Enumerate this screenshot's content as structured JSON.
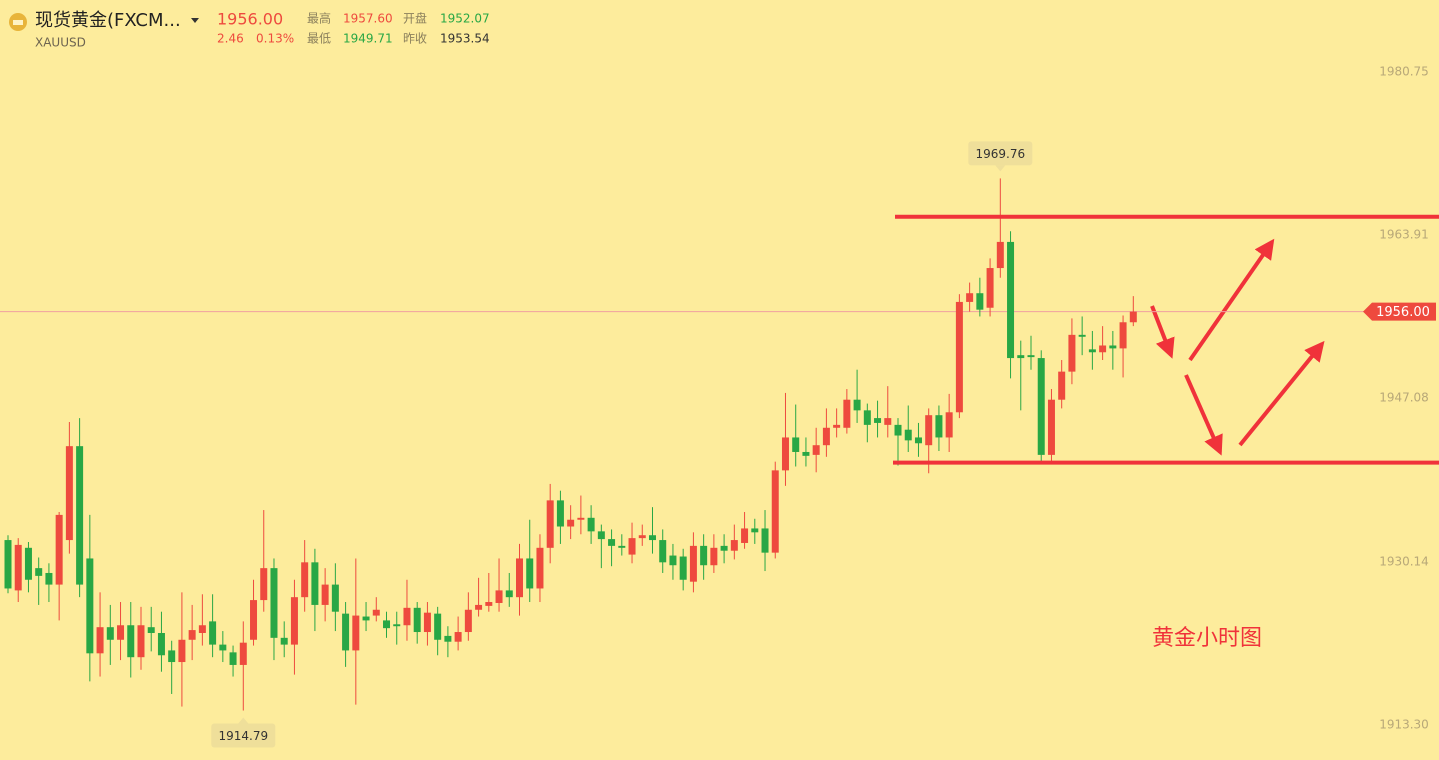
{
  "header": {
    "title": "现货黄金(FXCM...",
    "symbol": "XAUUSD",
    "price": "1956.00",
    "change": "2.46",
    "change_pct": "0.13%",
    "high_label": "最高",
    "high": "1957.60",
    "open_label": "开盘",
    "open": "1952.07",
    "low_label": "最低",
    "low": "1949.71",
    "prev_close_label": "昨收",
    "prev_close": "1953.54"
  },
  "chart_data": {
    "type": "candlestick",
    "annotation": "黄金小时图",
    "up_color": "#ee4a3e",
    "down_color": "#28a745",
    "ylim": [
      1909.68,
      1988.19
    ],
    "yticks": [
      {
        "value": 1913.3,
        "label": "1913.30"
      },
      1930.14,
      1947.08,
      1963.91,
      1980.75
    ],
    "last_price": {
      "value": 1956,
      "label": "1956.00"
    },
    "resistance": 1965.8,
    "support": 1940.4,
    "max_index": 97,
    "min_index": 23,
    "open": [
      1932.4,
      1927.2,
      1931.6,
      1929.5,
      1929.0,
      1927.8,
      1932.4,
      1942.1,
      1930.5,
      1920.7,
      1923.4,
      1922.1,
      1923.6,
      1920.3,
      1923.4,
      1922.8,
      1921.0,
      1919.8,
      1922.1,
      1922.8,
      1924.0,
      1921.6,
      1920.8,
      1919.5,
      1922.1,
      1926.2,
      1929.5,
      1922.3,
      1921.6,
      1926.5,
      1930.1,
      1925.7,
      1927.8,
      1924.8,
      1921.0,
      1924.5,
      1924.6,
      1924.1,
      1923.7,
      1923.6,
      1925.4,
      1922.9,
      1924.8,
      1922.5,
      1921.9,
      1922.9,
      1925.2,
      1925.6,
      1925.9,
      1927.2,
      1926.5,
      1930.5,
      1927.4,
      1931.6,
      1936.5,
      1933.8,
      1934.5,
      1934.7,
      1933.3,
      1932.5,
      1931.8,
      1930.9,
      1932.6,
      1932.9,
      1932.4,
      1930.8,
      1930.7,
      1928.1,
      1931.8,
      1929.8,
      1931.8,
      1931.3,
      1932.1,
      1933.6,
      1933.6,
      1931.1,
      1939.6,
      1943.0,
      1941.5,
      1941.2,
      1942.2,
      1944.0,
      1944.0,
      1946.9,
      1945.8,
      1945.0,
      1944.3,
      1944.3,
      1943.8,
      1943.0,
      1942.2,
      1945.3,
      1943.0,
      1945.6,
      1957.0,
      1957.9,
      1956.4,
      1960.5,
      1963.2,
      1951.5,
      1951.5,
      1951.2,
      1941.2,
      1946.9,
      1949.8,
      1953.6,
      1952.1,
      1951.8,
      1952.5,
      1952.2,
      1954.9
    ],
    "high": [
      1932.9,
      1932.6,
      1932.2,
      1930.6,
      1930.0,
      1935.3,
      1944.6,
      1945.0,
      1935.0,
      1927.0,
      1925.7,
      1926.0,
      1926.0,
      1925.5,
      1925.5,
      1925.0,
      1922.0,
      1927.0,
      1925.7,
      1926.8,
      1926.8,
      1923.0,
      1921.5,
      1924.0,
      1928.3,
      1935.5,
      1930.5,
      1924.0,
      1928.3,
      1932.4,
      1931.5,
      1929.5,
      1930.0,
      1926.0,
      1930.5,
      1926.0,
      1926.5,
      1925.0,
      1925.0,
      1928.3,
      1926.0,
      1926.0,
      1925.5,
      1923.5,
      1924.5,
      1927.0,
      1928.5,
      1929.0,
      1930.5,
      1929.0,
      1932.0,
      1934.5,
      1933.0,
      1938.2,
      1937.5,
      1936.0,
      1937.0,
      1936.0,
      1934.0,
      1933.5,
      1933.0,
      1934.2,
      1934.0,
      1935.8,
      1933.5,
      1932.0,
      1931.5,
      1933.2,
      1933.0,
      1933.0,
      1933.0,
      1934.0,
      1935.3,
      1934.6,
      1935.5,
      1940.5,
      1947.6,
      1946.4,
      1943.0,
      1944.0,
      1946.0,
      1946.0,
      1948.0,
      1950.0,
      1946.5,
      1946.8,
      1948.3,
      1945.0,
      1946.3,
      1944.5,
      1946.0,
      1946.3,
      1947.5,
      1957.8,
      1959.0,
      1959.5,
      1961.5,
      1969.76,
      1964.3,
      1953.0,
      1953.5,
      1952.0,
      1948.0,
      1951.0,
      1955.3,
      1955.5,
      1954.0,
      1954.5,
      1954.0,
      1955.6,
      1957.6
    ],
    "low": [
      1926.9,
      1926.0,
      1927.0,
      1925.7,
      1926.0,
      1924.1,
      1931.0,
      1926.5,
      1917.8,
      1918.3,
      1919.5,
      1920.0,
      1918.2,
      1919.0,
      1920.9,
      1918.8,
      1916.5,
      1915.2,
      1920.0,
      1921.5,
      1920.3,
      1919.8,
      1918.3,
      1914.79,
      1921.5,
      1925.0,
      1920.0,
      1920.3,
      1918.5,
      1925.0,
      1923.0,
      1924.0,
      1923.0,
      1919.3,
      1915.4,
      1923.0,
      1924.0,
      1922.3,
      1921.6,
      1922.0,
      1921.7,
      1921.5,
      1920.5,
      1920.3,
      1921.0,
      1922.0,
      1924.5,
      1925.0,
      1925.0,
      1925.5,
      1924.6,
      1926.0,
      1926.0,
      1930.0,
      1932.0,
      1932.5,
      1933.0,
      1932.0,
      1929.5,
      1929.7,
      1930.8,
      1930.0,
      1931.8,
      1931.0,
      1929.0,
      1928.3,
      1927.2,
      1927.0,
      1928.3,
      1929.0,
      1930.0,
      1930.4,
      1931.5,
      1932.0,
      1929.2,
      1930.5,
      1938.0,
      1940.0,
      1940.0,
      1939.4,
      1941.0,
      1943.0,
      1943.4,
      1944.5,
      1942.5,
      1943.0,
      1943.0,
      1940.1,
      1941.5,
      1941.0,
      1939.3,
      1941.6,
      1941.5,
      1945.0,
      1956.0,
      1955.5,
      1955.5,
      1959.5,
      1949.1,
      1945.8,
      1950.0,
      1940.5,
      1940.5,
      1946.0,
      1948.5,
      1951.5,
      1950.0,
      1951.0,
      1950.0,
      1949.2,
      1954.5
    ],
    "close": [
      1927.4,
      1931.9,
      1928.3,
      1928.7,
      1927.8,
      1935.0,
      1942.1,
      1927.8,
      1920.7,
      1923.4,
      1922.1,
      1923.6,
      1920.3,
      1923.6,
      1922.8,
      1920.5,
      1919.8,
      1922.1,
      1923.1,
      1923.6,
      1921.6,
      1921.0,
      1919.5,
      1921.8,
      1926.2,
      1929.5,
      1922.3,
      1921.6,
      1926.5,
      1930.1,
      1925.7,
      1927.8,
      1925.0,
      1921.0,
      1924.6,
      1924.1,
      1925.2,
      1923.3,
      1923.5,
      1925.4,
      1922.9,
      1924.9,
      1922.1,
      1921.9,
      1922.9,
      1925.2,
      1925.7,
      1926.0,
      1927.2,
      1926.5,
      1930.5,
      1927.4,
      1931.6,
      1936.5,
      1933.8,
      1934.5,
      1934.7,
      1933.3,
      1932.5,
      1931.8,
      1931.6,
      1932.6,
      1932.9,
      1932.4,
      1930.1,
      1929.8,
      1928.3,
      1931.8,
      1929.8,
      1931.6,
      1931.3,
      1932.4,
      1933.6,
      1933.2,
      1931.1,
      1939.6,
      1943.0,
      1941.5,
      1941.1,
      1942.2,
      1944.0,
      1944.3,
      1946.9,
      1945.8,
      1944.3,
      1944.5,
      1945.0,
      1943.2,
      1942.7,
      1942.4,
      1945.3,
      1943.0,
      1945.6,
      1957.0,
      1957.9,
      1956.2,
      1960.5,
      1963.2,
      1951.2,
      1951.2,
      1951.3,
      1941.2,
      1946.9,
      1949.8,
      1953.6,
      1953.4,
      1951.8,
      1952.5,
      1952.2,
      1954.9,
      1956.0
    ]
  }
}
